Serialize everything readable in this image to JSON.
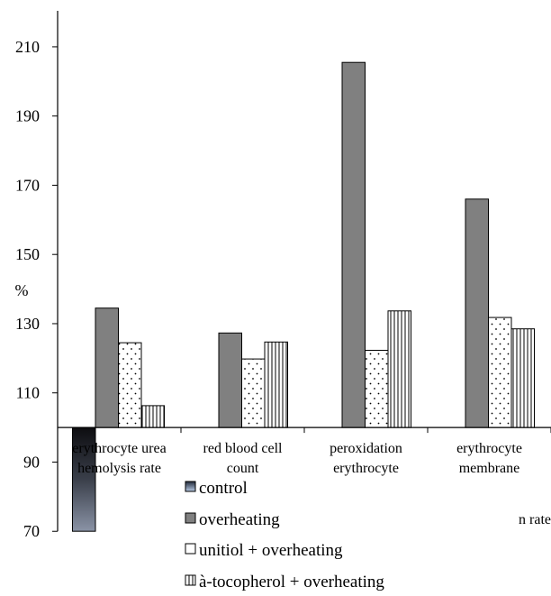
{
  "chart_data": {
    "type": "bar",
    "ylabel": "%",
    "ylim": [
      70,
      220
    ],
    "baseline": 100,
    "yticks": [
      70,
      90,
      110,
      130,
      150,
      170,
      190,
      210
    ],
    "categories": [
      [
        "erythrocyte urea",
        "hemolysis rate"
      ],
      [
        "red blood cell",
        "count"
      ],
      [
        "peroxidation",
        "erythrocyte"
      ],
      [
        "erythrocyte",
        "membrane"
      ]
    ],
    "clipped_label": "n rate",
    "series": [
      {
        "name": "control",
        "values": [
          70,
          null,
          null,
          null
        ]
      },
      {
        "name": "overheating",
        "values": [
          134.5,
          127.3,
          205.5,
          166
        ]
      },
      {
        "name": "unitiol + overheating",
        "values": [
          124.5,
          119.8,
          122.3,
          131.8
        ]
      },
      {
        "name": "à-tocopherol + overheating",
        "values": [
          106.3,
          124.7,
          133.7,
          128.5
        ]
      }
    ],
    "grid": false,
    "legend": "bottom"
  }
}
